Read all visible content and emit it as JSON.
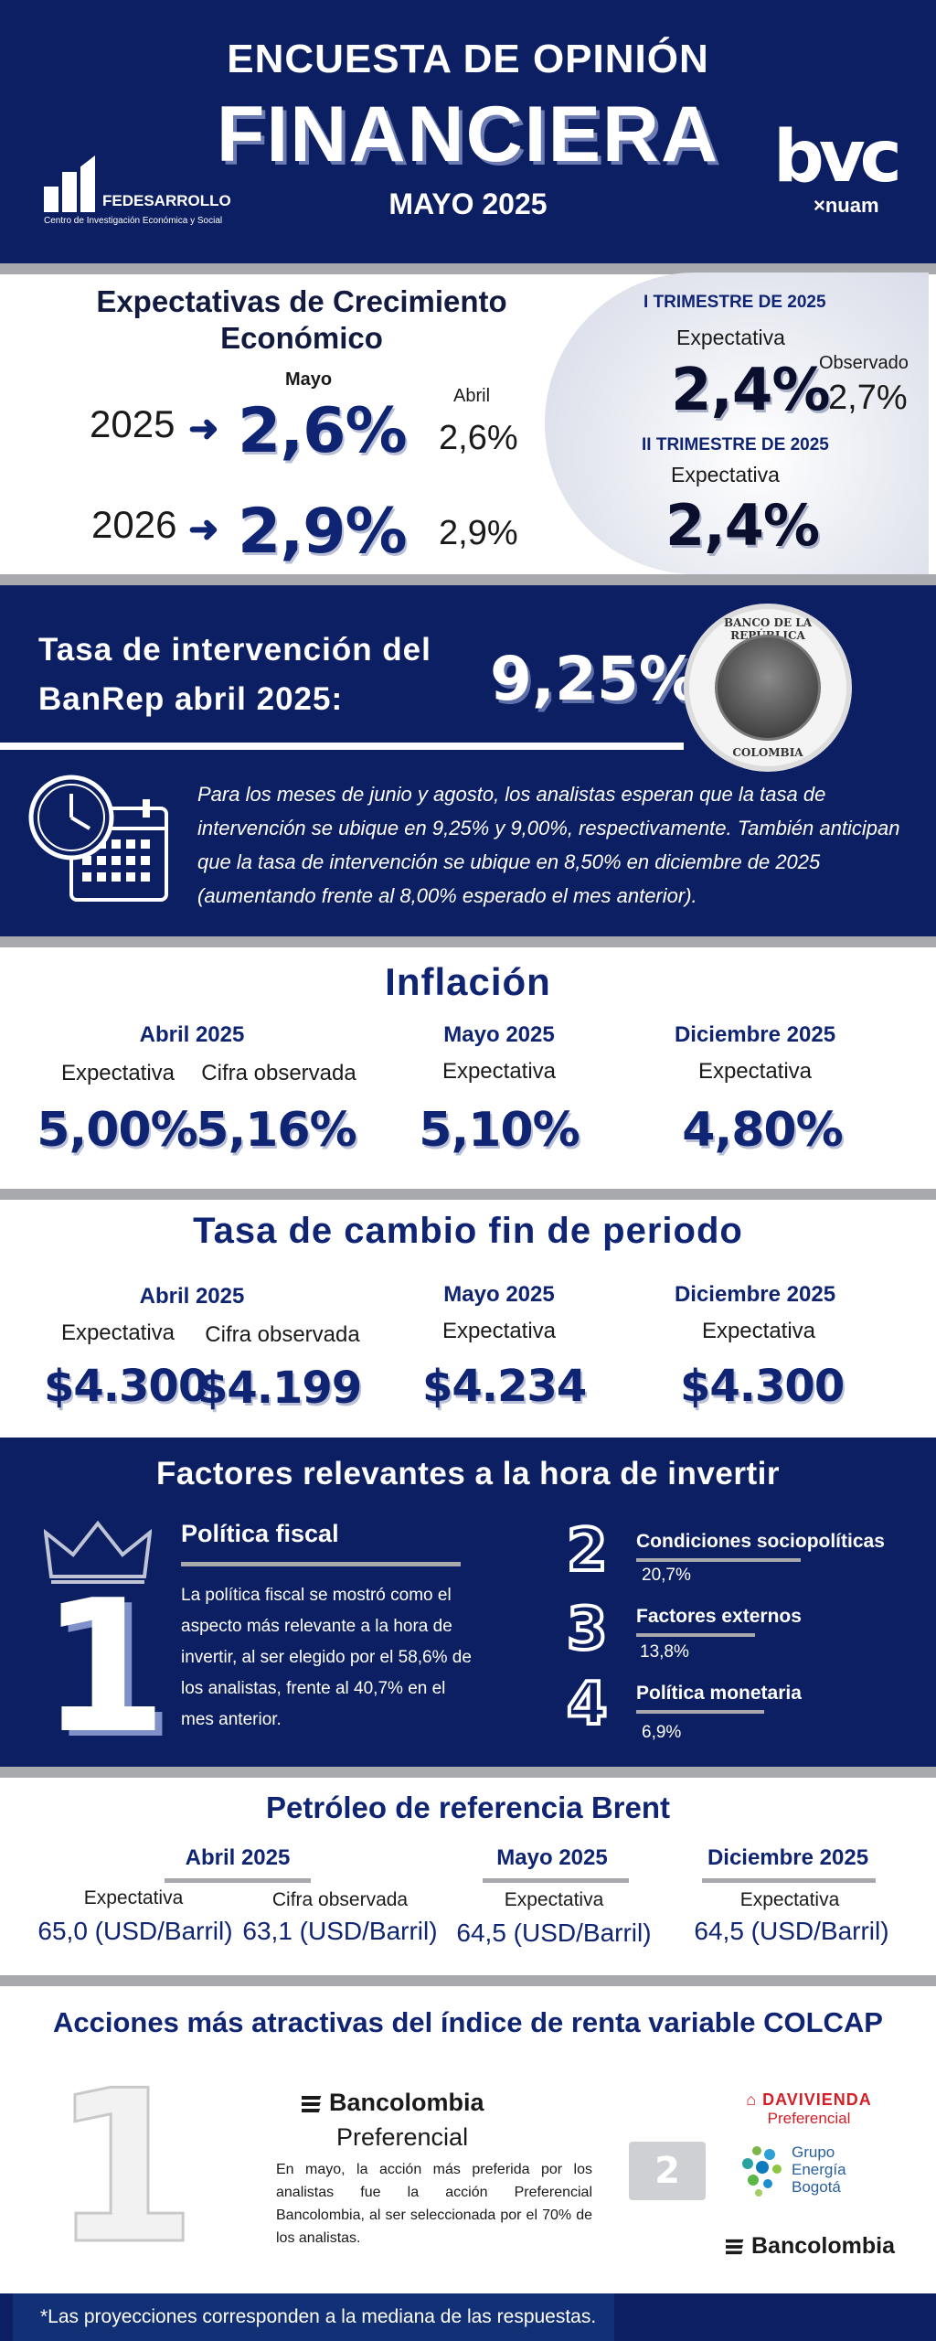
{
  "header": {
    "line1": "ENCUESTA DE OPINIÓN",
    "line2": "FINANCIERA",
    "date": "MAYO 2025",
    "left_logo_name": "FEDESARROLLO",
    "left_logo_sub": "Centro de Investigación Económica y Social",
    "right_logo_mark": "bvc",
    "right_logo_sub": "×nuam"
  },
  "growth": {
    "title_line1": "Expectativas de Crecimiento",
    "title_line2": "Económico",
    "col_may": "Mayo",
    "col_april": "Abril",
    "rows": [
      {
        "year": "2025",
        "may": "2,6%",
        "april": "2,6%"
      },
      {
        "year": "2026",
        "may": "2,9%",
        "april": "2,9%"
      }
    ],
    "q1_title": "I TRIMESTRE DE 2025",
    "q1_exp_label": "Expectativa",
    "q1_exp_value": "2,4%",
    "q1_obs_label": "Observado",
    "q1_obs_value": "2,7%",
    "q2_title": "II TRIMESTRE DE 2025",
    "q2_exp_label": "Expectativa",
    "q2_exp_value": "2,4%"
  },
  "banrep": {
    "title_line1": "Tasa de intervención del",
    "title_line2": "BanRep abril 2025:",
    "rate": "9,25%",
    "seal_top": "BANCO DE LA REPÚBLICA",
    "seal_bottom": "COLOMBIA",
    "text": "Para los meses de junio y agosto, los analistas esperan que la tasa de intervención se ubique en 9,25% y 9,00%, respectivamente. También anticipan que la tasa de intervención se ubique en 8,50% en diciembre de 2025 (aumentando frente al 8,00% esperado el mes anterior)."
  },
  "inflation": {
    "title": "Inflación",
    "april_head": "Abril 2025",
    "may_head": "Mayo 2025",
    "dec_head": "Diciembre 2025",
    "april_exp_label": "Expectativa",
    "april_exp_value": "5,00%",
    "april_obs_label": "Cifra observada",
    "april_obs_value": "5,16%",
    "may_exp_label": "Expectativa",
    "may_exp_value": "5,10%",
    "dec_exp_label": "Expectativa",
    "dec_exp_value": "4,80%"
  },
  "fx": {
    "title": "Tasa de cambio fin de periodo",
    "april_head": "Abril 2025",
    "may_head": "Mayo 2025",
    "dec_head": "Diciembre 2025",
    "april_exp_label": "Expectativa",
    "april_exp_value": "$4.300",
    "april_obs_label": "Cifra observada",
    "april_obs_value": "$4.199",
    "may_exp_label": "Expectativa",
    "may_exp_value": "$4.234",
    "dec_exp_label": "Expectativa",
    "dec_exp_value": "$4.300"
  },
  "factors": {
    "title": "Factores relevantes a la hora de invertir",
    "first_rank": "1",
    "first_title": "Política fiscal",
    "first_text": "La política fiscal se mostró como el aspecto más relevante a la hora de invertir, al ser elegido por el 58,6% de los analistas, frente al 40,7% en el mes anterior.",
    "others": [
      {
        "rank": "2",
        "title": "Condiciones sociopolíticas",
        "pct": "20,7%"
      },
      {
        "rank": "3",
        "title": "Factores externos",
        "pct": "13,8%"
      },
      {
        "rank": "4",
        "title": "Política monetaria",
        "pct": "6,9%"
      }
    ]
  },
  "oil": {
    "title": "Petróleo de referencia Brent",
    "april_head": "Abril 2025",
    "may_head": "Mayo 2025",
    "dec_head": "Diciembre 2025",
    "april_exp_label": "Expectativa",
    "april_exp_value": "65,0 (USD/Barril)",
    "april_obs_label": "Cifra observada",
    "april_obs_value": "63,1 (USD/Barril)",
    "may_exp_label": "Expectativa",
    "may_exp_value": "64,5 (USD/Barril)",
    "dec_exp_label": "Expectativa",
    "dec_exp_value": "64,5 (USD/Barril)"
  },
  "stocks": {
    "title": "Acciones más atractivas del índice de renta variable COLCAP",
    "first_rank": "1",
    "first_brand": "Bancolombia",
    "first_class": "Preferencial",
    "first_text": "En mayo, la acción más preferida por los analistas fue la acción Preferencial Bancolombia, al ser seleccionada por el 70% de los analistas.",
    "second_rank": "2",
    "davi_name": "DAVIVIENDA",
    "davi_class": "Preferencial",
    "geb_line1": "Grupo",
    "geb_line2": "Energía",
    "geb_line3": "Bogotá",
    "third_brand": "Bancolombia"
  },
  "footer": {
    "note": "*Las proyecciones corresponden a la mediana de las respuestas."
  },
  "colors": {
    "navy": "#0c1f63",
    "accent_blue": "#0f2472",
    "separator": "#a8a9ad"
  }
}
